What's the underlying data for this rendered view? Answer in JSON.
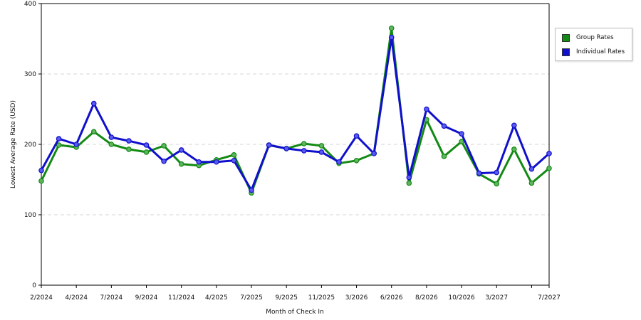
{
  "chart_data": {
    "type": "line",
    "title": "",
    "xlabel": "Month of Check In",
    "ylabel": "Lowest Average Rate (USD)",
    "ylim": [
      0,
      400
    ],
    "yticks": [
      0,
      100,
      200,
      300,
      400
    ],
    "grid": "horizontal dashed",
    "legend_position": "right",
    "x_tick_labels": [
      {
        "index": 0,
        "label": "2/2024"
      },
      {
        "index": 2,
        "label": "4/2024"
      },
      {
        "index": 4,
        "label": "7/2024"
      },
      {
        "index": 6,
        "label": "9/2024"
      },
      {
        "index": 8,
        "label": "11/2024"
      },
      {
        "index": 10,
        "label": "4/2025"
      },
      {
        "index": 12,
        "label": "7/2025"
      },
      {
        "index": 14,
        "label": "9/2025"
      },
      {
        "index": 16,
        "label": "11/2025"
      },
      {
        "index": 18,
        "label": "3/2026"
      },
      {
        "index": 20,
        "label": "6/2026"
      },
      {
        "index": 22,
        "label": "8/2026"
      },
      {
        "index": 24,
        "label": "10/2026"
      },
      {
        "index": 26,
        "label": "3/2027"
      },
      {
        "index": 28,
        "label": ""
      },
      {
        "index": 29,
        "label": "7/2027"
      }
    ],
    "series": [
      {
        "name": "Group Rates",
        "color": "#138a13",
        "values": [
          148,
          199,
          196,
          218,
          200,
          193,
          189,
          198,
          172,
          170,
          178,
          185,
          131,
          199,
          194,
          201,
          198,
          173,
          177,
          187,
          365,
          145,
          235,
          183,
          204,
          158,
          144,
          193,
          145,
          166
        ]
      },
      {
        "name": "Individual Rates",
        "color": "#1010cc",
        "values": [
          163,
          208,
          200,
          258,
          210,
          205,
          199,
          176,
          192,
          175,
          175,
          177,
          135,
          199,
          194,
          191,
          189,
          175,
          212,
          187,
          352,
          153,
          250,
          226,
          215,
          159,
          160,
          227,
          165,
          187
        ]
      }
    ]
  }
}
